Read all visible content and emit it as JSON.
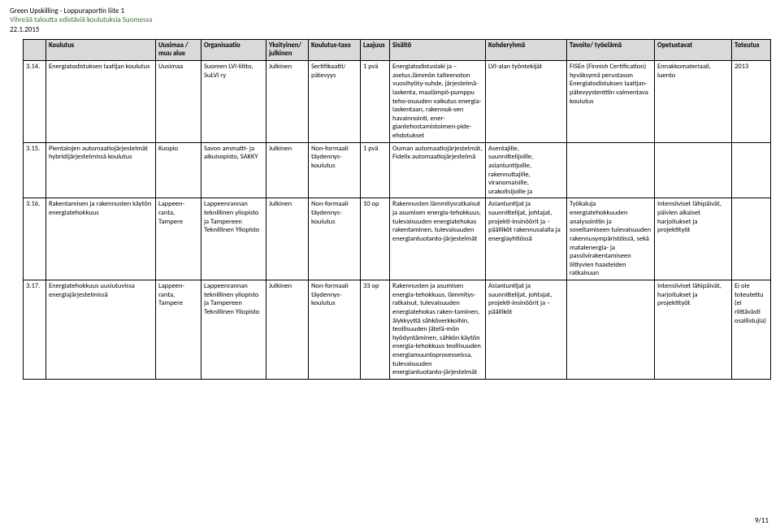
{
  "meta": {
    "title": "Green Upskilling - Loppuraportin liite 1",
    "subtitle": "Vihreää taloutta edistäviä koulutuksia Suomessa",
    "date": "22.1.2015",
    "pagenum": "9/11"
  },
  "columns": [
    "",
    "Koulutus",
    "Uusimaa / muu alue",
    "Organisaatio",
    "Yksityinen/ julkinen",
    "Koulutus-taso",
    "Laajuus",
    "Sisältö",
    "Kohderyhmä",
    "Tavoite/ työelämä",
    "Opetustavat",
    "Toteutus"
  ],
  "rows": [
    {
      "idx": "3.14.",
      "name": "Energiatodistuksen laatijan koulutus",
      "region": "Uusimaa",
      "org": "Suomen LVI-liitto, SuLVI ry",
      "priv": "Julkinen",
      "level": "Sertifikaatti/ pätevyys",
      "extent": "1 pvä",
      "content": "Energiatodistuslaki ja –asetus,lämmön talteenoton vuosihyöty-suhde, järjestelmä-laskenta, maalämpö-pumppu teho-osuuden vaikutus energia-laskentaan, rakennuk-sen havainnointi, ener-giantehostamistoimen-pide-ehdotukset",
      "group": "LVI-alan työntekijät",
      "goal": "FISEn (Finnish Certification) hyväksymä perustason Energiatodistuksen laatijan-pätevyystenttiin valmentava koulutus",
      "methods": "Ennakkomateriaali, luento",
      "tot": "2013"
    },
    {
      "idx": "3.15.",
      "name": "Pientalojen automaatiojärjestelmät hybridijärjestelmissä koulutus",
      "region": "Kuopio",
      "org": "Savon ammatti- ja aikuisopisto, SAKKY",
      "priv": "Julkinen",
      "level": "Non-formaali täydennys-koulutus",
      "extent": "1 pvä",
      "content": "Ouman automaatiojärjestelmät, Fidelix automaatiojärjestelmä",
      "group": "Asentajille, suunnittelijoille, asiantuntijoille, rakennuttajille, viranomaisille, urakoitsijoille ja",
      "goal": "",
      "methods": "",
      "tot": ""
    },
    {
      "idx": "3.16.",
      "name": "Rakentamisen ja rakennusten käytön energiatehokkuus",
      "region": "Lappeen-ranta, Tampere",
      "org": "Lappeenrannan teknillinen yliopisto ja Tampereen Teknillinen Yliopisto",
      "priv": "Julkinen",
      "level": "Non-formaali täydennys-koulutus",
      "extent": "10 op",
      "content": "Rakennusten lämmitysratkaisut ja asumisen energia-tehokkuus, tulevaisuuden energiatehokas rakentaminen, tulevaisuuden energiantuotanto-järjestelmät",
      "group": "Asiantuntijat ja suunnittelijat, johtajat, projekti-insinöörit ja –päälliköt rakennusalalla ja energiayhtiössä",
      "goal": "Työkaluja energiatehokkuuden analysointiin ja soveltamiseen tulevaisuuden rakennusympäristöissä, sekä matalenergia- ja passiivirakentamiseen liittyvien haasteiden ratkaisuun",
      "methods": "Intensiiviset lähipäivät, päivien aikaiset harjoitukset ja projektityöt",
      "tot": ""
    },
    {
      "idx": "3.17.",
      "name": "Energiatehokkuus uusiutuvissa energiajärjestelmissä",
      "region": "Lappeen-ranta, Tampere",
      "org": "Lappeenrannan teknillinen yliopisto ja Tampereen Teknillinen Yliopisto",
      "priv": "Julkinen",
      "level": "Non-formaali täydennys-koulutus",
      "extent": "33 op",
      "content": "Rakennusten ja asumisen energia-tehokkuus, lämmitys-ratkaisut, tulevaisuuden energiatehokas raken-taminen, älykkyyttä sähköverkkoihin, teollisuuden jätelä-mön hyödyntäminen, sähkön käytön energia-tehokkuus teollisuuden energiamuuntoprosesseissa, tulevaisuuden energiantuotanto-järjestelmät",
      "group": "Asiantuntijat ja suunnittelijat, johtajat, projekti-insinöörit ja –päälliköt",
      "goal": "",
      "methods": "Intensiiviset lähipäivät, harjoitukset ja projektityöt",
      "tot": "Ei ole toteutettu (ei riittävästi osallistujia)"
    }
  ]
}
